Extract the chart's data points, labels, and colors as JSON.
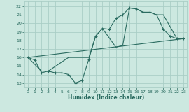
{
  "title": "",
  "xlabel": "Humidex (Indice chaleur)",
  "bg_color": "#cce8e0",
  "grid_color": "#aacec6",
  "line_color": "#2a6b60",
  "xlim": [
    -0.5,
    23.5
  ],
  "ylim": [
    12.5,
    22.6
  ],
  "xticks": [
    0,
    1,
    2,
    3,
    4,
    5,
    6,
    7,
    8,
    9,
    10,
    11,
    12,
    13,
    14,
    15,
    16,
    17,
    18,
    19,
    20,
    21,
    22,
    23
  ],
  "yticks": [
    13,
    14,
    15,
    16,
    17,
    18,
    19,
    20,
    21,
    22
  ],
  "line1_x": [
    0,
    1,
    2,
    3,
    4,
    5,
    6,
    7,
    8,
    9,
    10,
    11,
    12,
    13,
    14,
    15,
    16,
    17,
    18,
    19,
    20,
    21,
    22,
    23
  ],
  "line1_y": [
    16.0,
    15.7,
    14.2,
    14.4,
    14.2,
    14.2,
    14.0,
    13.0,
    13.3,
    15.8,
    18.5,
    19.4,
    19.3,
    20.6,
    21.0,
    21.8,
    21.7,
    21.3,
    21.3,
    21.0,
    19.3,
    18.5,
    18.2,
    18.2
  ],
  "line2_x": [
    0,
    2,
    3,
    6,
    9,
    10,
    11,
    13,
    14,
    15,
    16,
    17,
    18,
    19,
    20,
    22,
    23
  ],
  "line2_y": [
    16.0,
    14.4,
    14.4,
    16.0,
    16.0,
    18.5,
    19.4,
    17.2,
    17.4,
    21.8,
    21.7,
    21.3,
    21.3,
    21.0,
    21.0,
    18.2,
    18.2
  ],
  "line3_x": [
    0,
    23
  ],
  "line3_y": [
    16.0,
    18.2
  ]
}
